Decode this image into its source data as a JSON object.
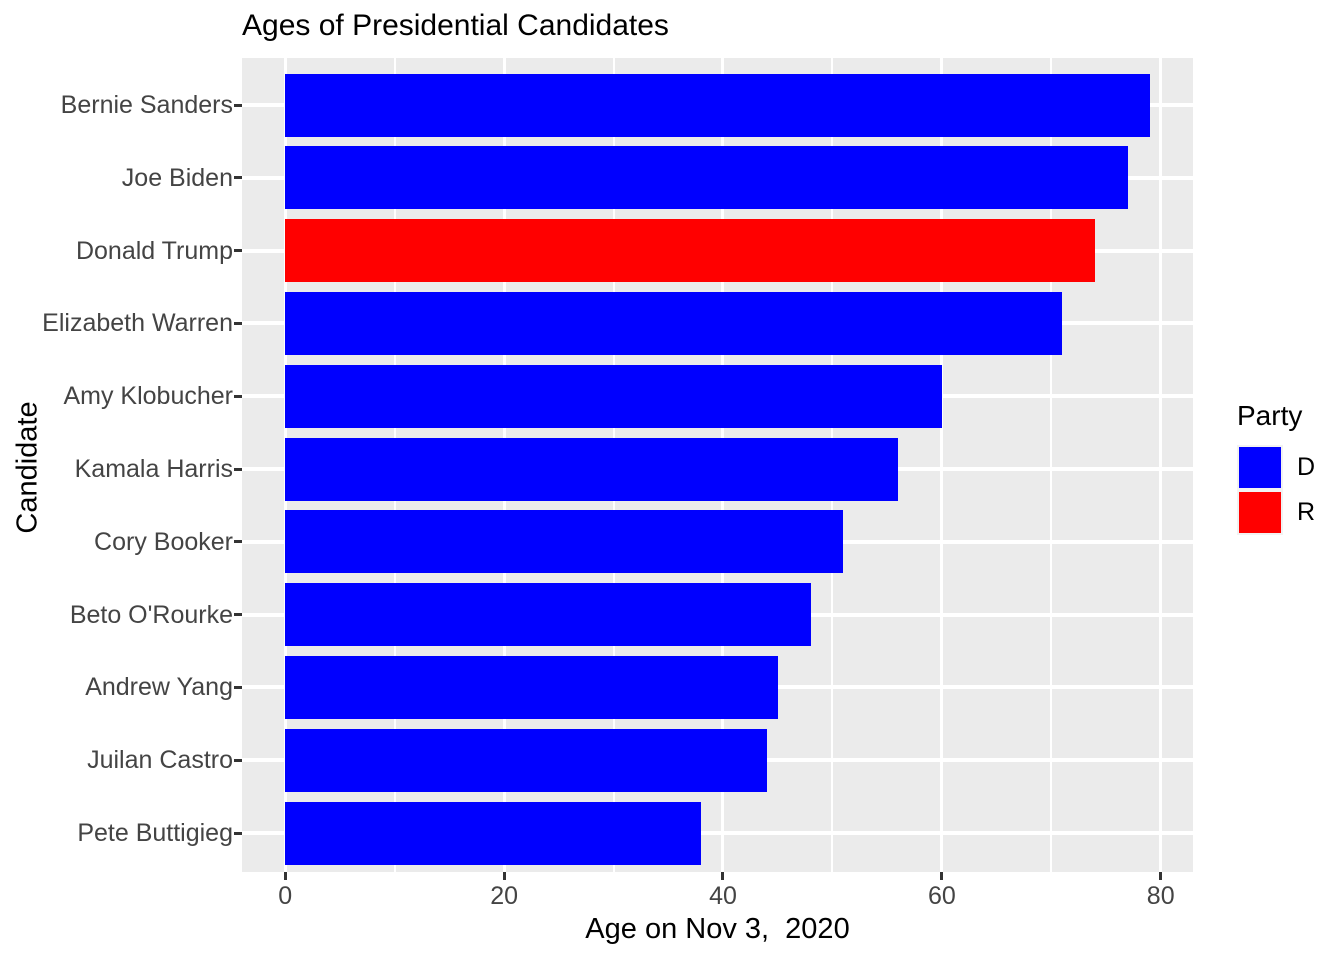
{
  "chart_data": {
    "type": "bar",
    "orientation": "horizontal",
    "title": "Ages of Presidential Candidates",
    "xlabel": "Age on Nov 3,  2020",
    "ylabel": "Candidate",
    "categories": [
      "Bernie Sanders",
      "Joe Biden",
      "Donald Trump",
      "Elizabeth Warren",
      "Amy Klobucher",
      "Kamala Harris",
      "Cory Booker",
      "Beto O'Rourke",
      "Andrew Yang",
      "Juilan Castro",
      "Pete Buttigieg"
    ],
    "values": [
      79,
      77,
      74,
      71,
      60,
      56,
      51,
      48,
      45,
      44,
      38
    ],
    "series_by_party": [
      {
        "name": "D",
        "members": [
          "Bernie Sanders",
          "Joe Biden",
          "Elizabeth Warren",
          "Amy Klobucher",
          "Kamala Harris",
          "Cory Booker",
          "Beto O'Rourke",
          "Andrew Yang",
          "Juilan Castro",
          "Pete Buttigieg"
        ]
      },
      {
        "name": "R",
        "members": [
          "Donald Trump"
        ]
      }
    ],
    "party": [
      "D",
      "D",
      "R",
      "D",
      "D",
      "D",
      "D",
      "D",
      "D",
      "D",
      "D"
    ],
    "party_colors": {
      "D": "#0000FF",
      "R": "#FF0000"
    },
    "x_major_ticks": [
      0,
      20,
      40,
      60,
      80
    ],
    "x_major_tick_labels": [
      "0",
      "20",
      "40",
      "60",
      "80"
    ],
    "x_minor_ticks": [
      10,
      30,
      50,
      70
    ],
    "xlim": [
      -3.95,
      82.95
    ],
    "grid": "on",
    "panel_background": "#EBEBEB",
    "grid_color": "#FFFFFF",
    "tick_label_color": "#444444",
    "legend": {
      "title": "Party",
      "position": "right",
      "entries": [
        {
          "label": "D",
          "color": "#0000FF"
        },
        {
          "label": "R",
          "color": "#FF0000"
        }
      ]
    }
  }
}
